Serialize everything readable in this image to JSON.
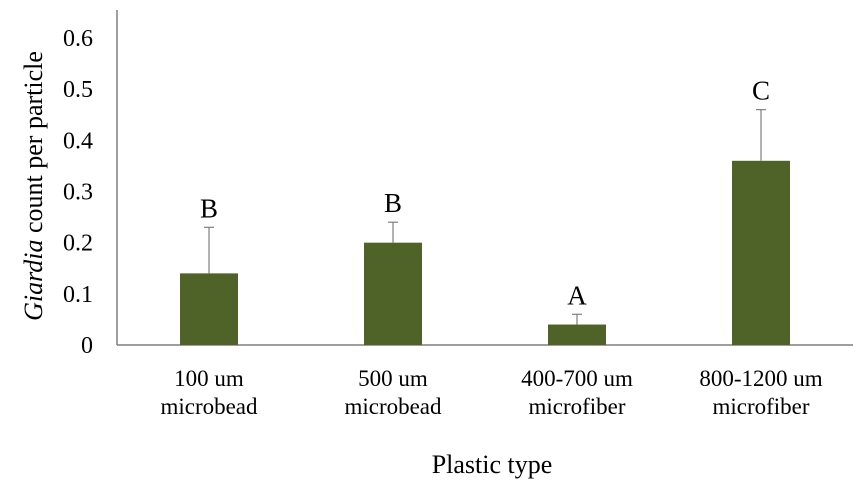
{
  "chart_data": {
    "type": "bar",
    "categories": [
      [
        "100 um",
        "microbead"
      ],
      [
        "500 um",
        "microbead"
      ],
      [
        "400-700 um",
        "microfiber"
      ],
      [
        "800-1200 um",
        "microfiber"
      ]
    ],
    "values": [
      0.14,
      0.2,
      0.04,
      0.36
    ],
    "error_plus": [
      0.09,
      0.04,
      0.02,
      0.1
    ],
    "significance_letters": [
      "B",
      "B",
      "A",
      "C"
    ],
    "xlabel": "Plastic type",
    "ylabel": {
      "italic_part": "Giardia",
      "rest": " count per particle"
    },
    "ylim": [
      0,
      0.6
    ],
    "yticks": [
      0,
      0.1,
      0.2,
      0.3,
      0.4,
      0.5,
      0.6
    ],
    "ytick_labels": [
      "0",
      "0.1",
      "0.2",
      "0.3",
      "0.4",
      "0.5",
      "0.6"
    ],
    "grid": false,
    "legend": "none",
    "colors": {
      "bar": "#4f6228",
      "axis": "#7f7f7f",
      "error_bar": "#7f7f7f"
    }
  }
}
